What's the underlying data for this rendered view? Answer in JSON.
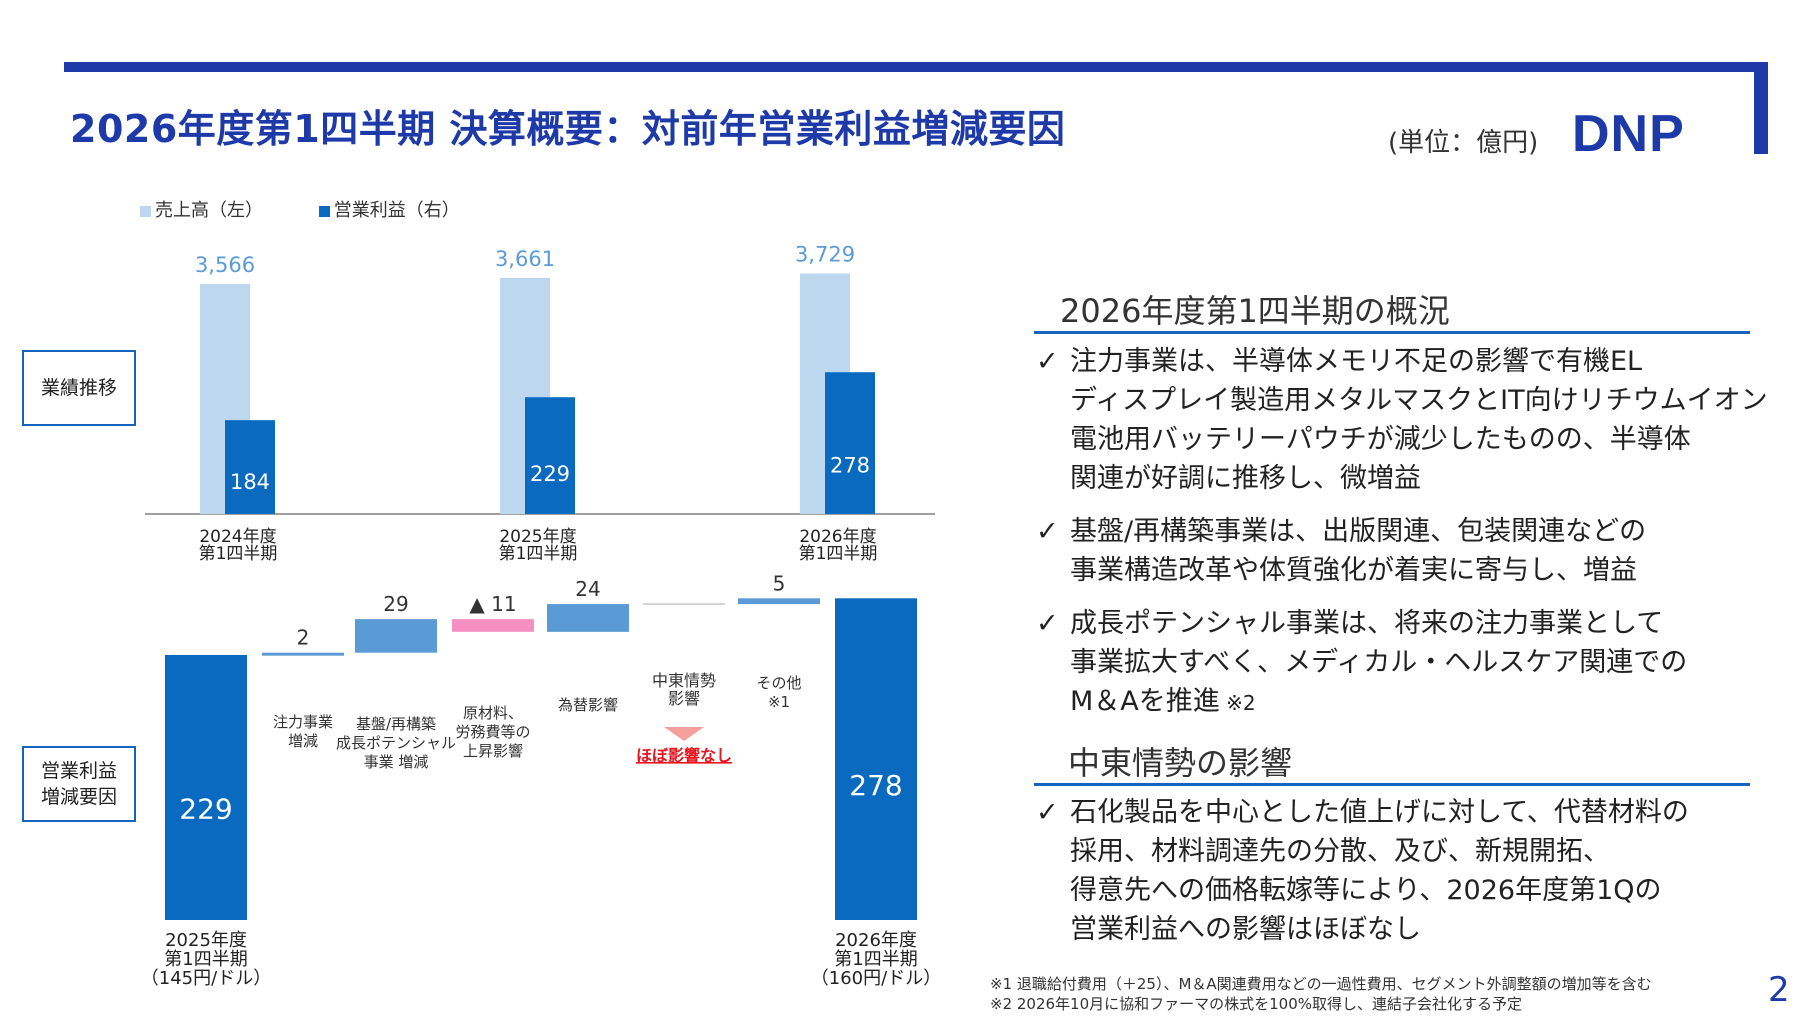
{
  "header": {
    "title": "2026年度第1四半期 決算概要：対前年営業利益増減要因",
    "unit": "(単位：億円)",
    "logo": "DNP",
    "page_number": "2"
  },
  "left": {
    "box_performance": "業績推移",
    "box_factors_line1": "営業利益",
    "box_factors_line2": "増減要因",
    "legend": {
      "sales": "売上高（左）",
      "op_income": "営業利益（右）"
    },
    "colors": {
      "sales": "#bdd7ee",
      "op_income": "#0a6abf",
      "diff_bar": "#5b9bd5",
      "negative_bar": "#f48fc0",
      "triangle": "#f4a09c",
      "no_impact_text": "#e8141e",
      "axis": "#808080"
    }
  },
  "chart_data": [
    {
      "type": "bar",
      "categories": [
        "2024年度\n第1四半期",
        "2025年度\n第1四半期",
        "2026年度\n第1四半期"
      ],
      "series": [
        {
          "name": "売上高（左）",
          "values": [
            3566,
            3661,
            3729
          ]
        },
        {
          "name": "営業利益（右）",
          "values": [
            184,
            229,
            278
          ]
        }
      ],
      "value_labels": {
        "sales": [
          "3,566",
          "3,661",
          "3,729"
        ],
        "op_income": [
          "184",
          "229",
          "278"
        ]
      },
      "legend_position": "top-left",
      "grid": false
    },
    {
      "type": "waterfall",
      "steps": [
        {
          "label": "2025年度\n第1四半期\n（145円/ドル）",
          "value": 229,
          "kind": "total",
          "value_label": "229"
        },
        {
          "label": "注力事業\n増減",
          "value": 2,
          "kind": "increase",
          "value_label": "2"
        },
        {
          "label": "基盤/再構築\n成長ポテンシャル\n事業 増減",
          "value": 29,
          "kind": "increase",
          "value_label": "29"
        },
        {
          "label": "原材料、\n労務費等の\n上昇影響",
          "value": -11,
          "kind": "decrease",
          "value_label": "▲ 11"
        },
        {
          "label": "為替影響",
          "value": 24,
          "kind": "increase",
          "value_label": "24"
        },
        {
          "label": "中東情勢\n影響",
          "value": 0,
          "kind": "none",
          "value_label": "",
          "note": "ほぼ影響なし"
        },
        {
          "label": "その他\n※1",
          "value": 5,
          "kind": "increase",
          "value_label": "5"
        },
        {
          "label": "2026年度\n第1四半期\n（160円/ドル）",
          "value": 278,
          "kind": "total",
          "value_label": "278"
        }
      ]
    }
  ],
  "right": {
    "section1_title": "2026年度第1四半期の概況",
    "check": "✓",
    "bullets1": [
      {
        "lines": [
          "注力事業は、半導体メモリ不足の影響で有機EL",
          "ディスプレイ製造用メタルマスクとIT向けリチウムイオン",
          "電池用バッテリーパウチが減少したものの、半導体",
          "関連が好調に推移し、微増益"
        ],
        "note": ""
      },
      {
        "lines": [
          "基盤/再構築事業は、出版関連、包装関連などの",
          "事業構造改革や体質強化が着実に寄与し、増益"
        ],
        "note": ""
      },
      {
        "lines": [
          "成長ポテンシャル事業は、将来の注力事業として",
          "事業拡大すべく、メディカル・ヘルスケア関連での",
          "M＆Aを推進"
        ],
        "note": "※2"
      }
    ],
    "section2_title": "中東情勢の影響",
    "bullets2": [
      {
        "lines": [
          "石化製品を中心とした値上げに対して、代替材料の",
          "採用、材料調達先の分散、及び、新規開拓、",
          "得意先への価格転嫁等により、2026年度第1Qの",
          "営業利益への影響はほぼなし"
        ],
        "note": ""
      }
    ]
  },
  "footnotes": [
    "※1 退職給付費用（＋25）、M＆A関連費用などの一過性費用、セグメント外調整額の増加等を含む",
    "※2 2026年10月に協和ファーマの株式を100%取得し、連結子会社化する予定"
  ]
}
